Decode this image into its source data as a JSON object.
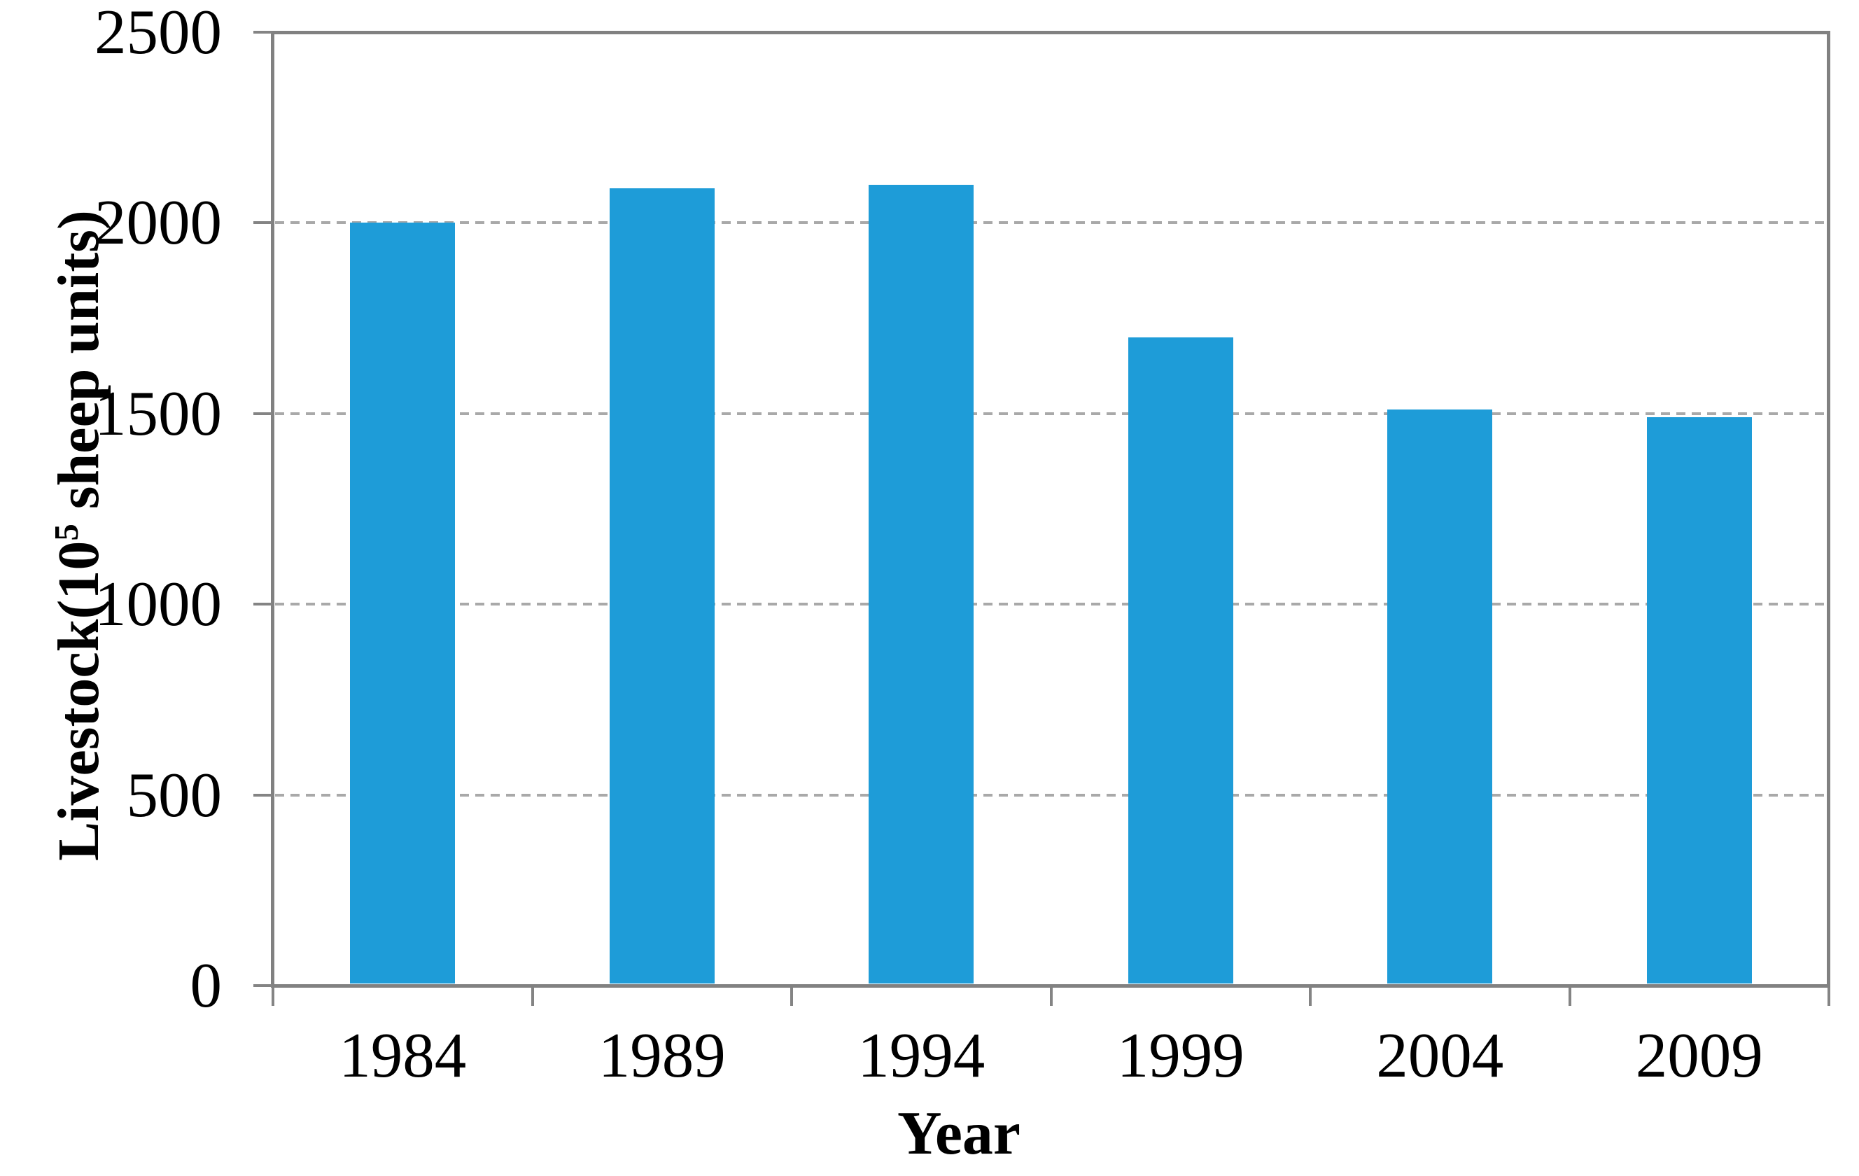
{
  "chart_data": {
    "type": "bar",
    "title": "",
    "categories": [
      "1984",
      "1989",
      "1994",
      "1999",
      "2004",
      "2009"
    ],
    "values": [
      2000,
      2090,
      2100,
      1700,
      1510,
      1490
    ],
    "xlabel": "Year",
    "ylabel": "Livestock(10⁵ sheep units)",
    "ylabel_parts": {
      "pre": "Livestock(10",
      "sup": "5",
      "post": " sheep units)"
    },
    "y_ticks": [
      "0",
      "500",
      "1000",
      "1500",
      "2000",
      "2500"
    ],
    "ylim": [
      0,
      2500
    ],
    "grid": "horizontal dashed at 500,1000,1500,2000",
    "legend": "none",
    "colors": {
      "bar": "#1e9cd8",
      "axis": "#818181",
      "gridline": "#a9a9a9",
      "text": "#000000"
    }
  }
}
